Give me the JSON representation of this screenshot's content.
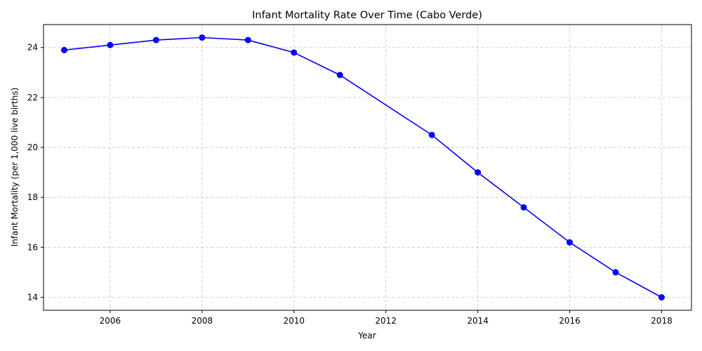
{
  "chart_data": {
    "type": "line",
    "title": "Infant Mortality Rate Over Time (Cabo Verde)",
    "xlabel": "Year",
    "ylabel": "Infant Mortality (per 1,000 live births)",
    "xlim": [
      2004.55,
      2018.65
    ],
    "ylim": [
      13.48,
      24.92
    ],
    "x_ticks": [
      2006,
      2008,
      2010,
      2012,
      2014,
      2016,
      2018
    ],
    "y_ticks": [
      14,
      16,
      18,
      20,
      22,
      24
    ],
    "grid": true,
    "legend": "none",
    "series": [
      {
        "color": "#0000ff",
        "marker": "circle",
        "x": [
          2005,
          2006,
          2007,
          2008,
          2009,
          2010,
          2011,
          2013,
          2014,
          2015,
          2016,
          2017,
          2018
        ],
        "y": [
          23.9,
          24.1,
          24.3,
          24.4,
          24.3,
          23.8,
          22.9,
          20.5,
          19.0,
          17.6,
          16.2,
          15.0,
          14.0
        ]
      }
    ]
  }
}
